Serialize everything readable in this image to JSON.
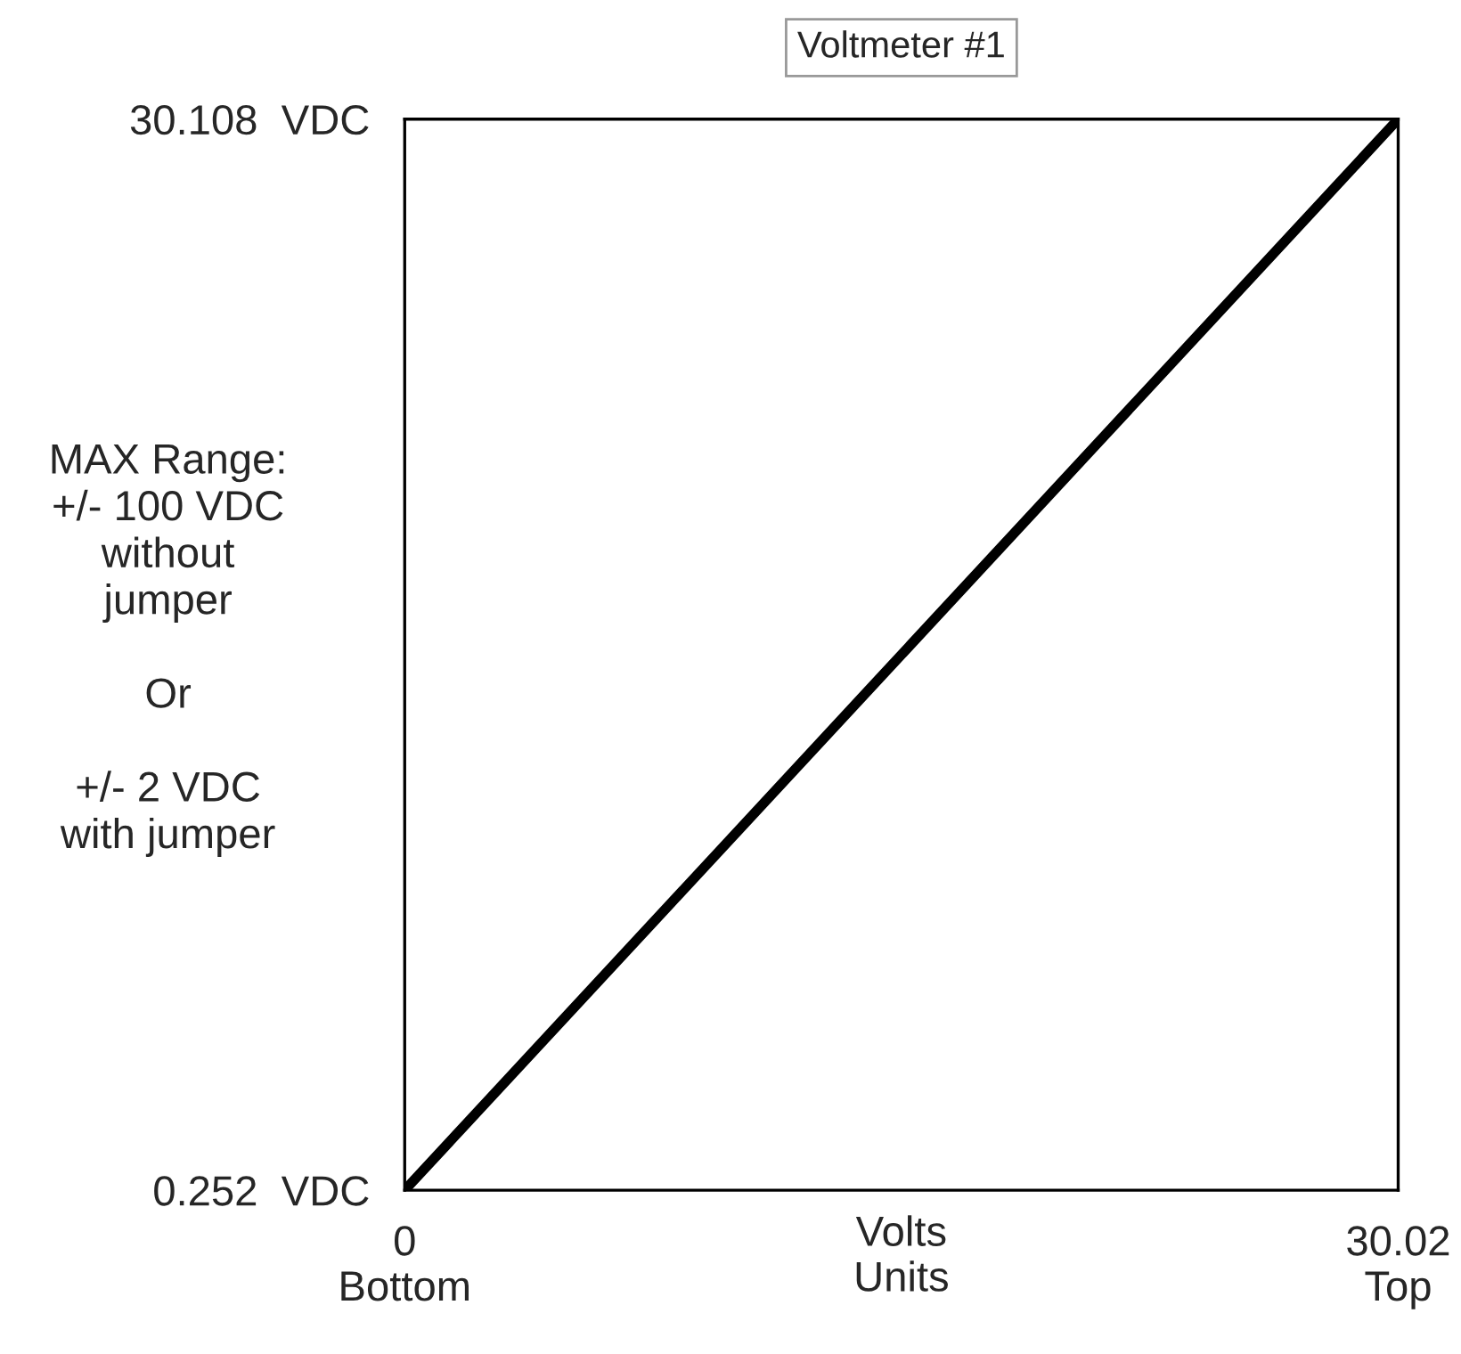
{
  "chart_data": {
    "type": "line",
    "title": "Voltmeter #1",
    "xlabel": "Volts\nUnits",
    "x": [
      0,
      30.02
    ],
    "series": [
      {
        "color": "#000000",
        "values": [
          0.252,
          30.108
        ]
      }
    ],
    "xlim": [
      0,
      30.02
    ],
    "ylim": [
      0.252,
      30.108
    ],
    "xticks": [
      {
        "value": 0,
        "label": "0\nBottom"
      },
      {
        "value": 30.02,
        "label": "30.02\nTop"
      }
    ],
    "yticks": [
      {
        "value": 0.252,
        "label": "0.252  VDC"
      },
      {
        "value": 30.108,
        "label": "30.108  VDC"
      }
    ],
    "line_style": "solid",
    "marker": "none",
    "annotations": [
      "MAX Range:\n+/- 100 VDC\nwithout\njumper\n\nOr\n\n+/- 2 VDC\nwith jumper"
    ]
  }
}
